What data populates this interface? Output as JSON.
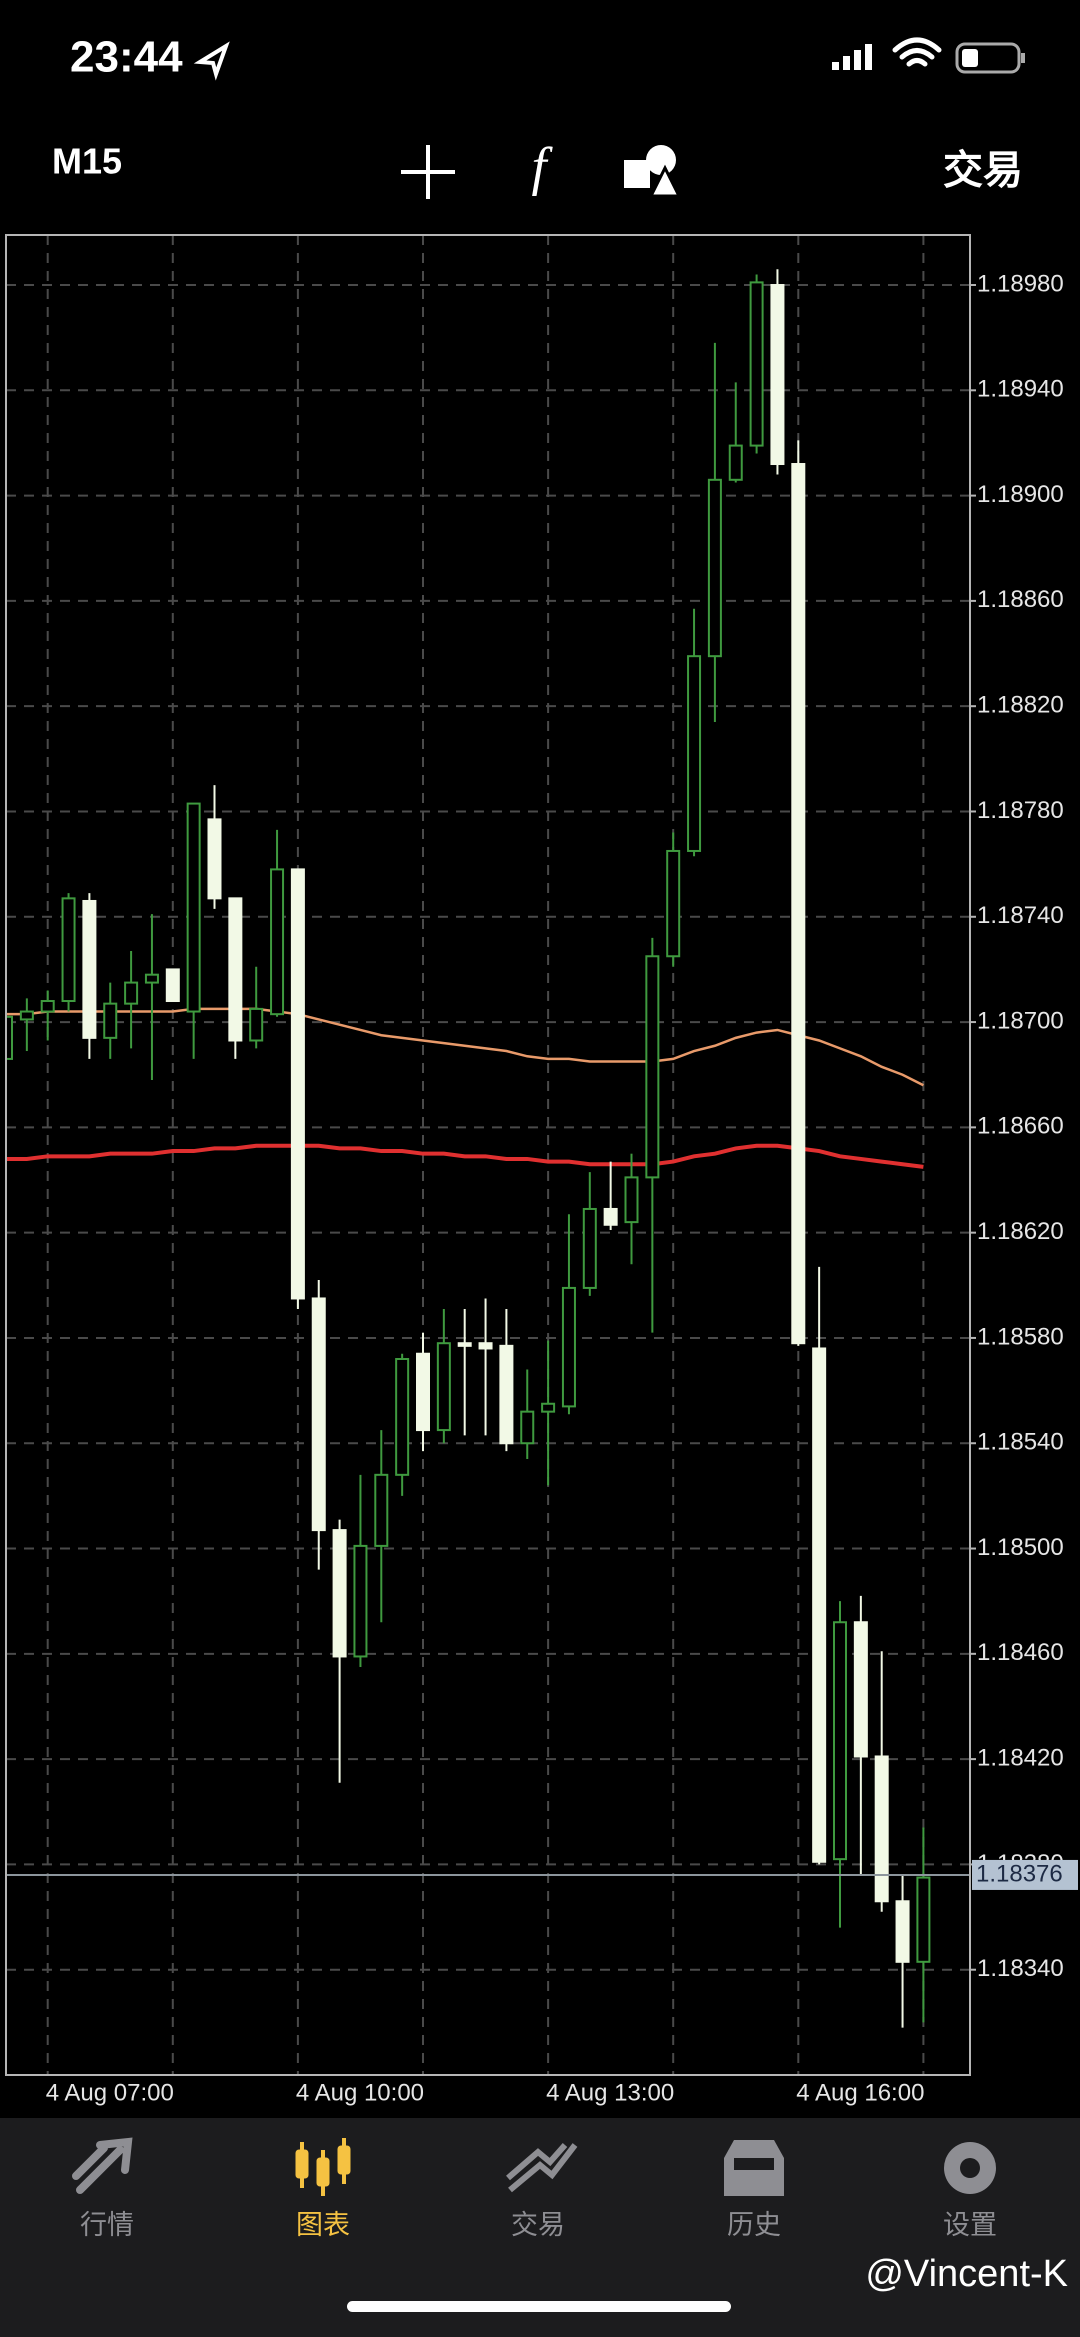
{
  "status_bar": {
    "time": "23:44"
  },
  "toolbar": {
    "timeframe": "M15",
    "trade": "交易"
  },
  "chart_data": {
    "type": "candlestick",
    "categories": [
      null,
      null,
      "4 Aug 07:00",
      null,
      null,
      null,
      null,
      null,
      null,
      null,
      null,
      null,
      null,
      null,
      "4 Aug 10:00",
      null,
      null,
      null,
      null,
      null,
      null,
      null,
      null,
      null,
      null,
      null,
      "4 Aug 13:00",
      null,
      null,
      null,
      null,
      null,
      null,
      null,
      null,
      null,
      null,
      null,
      "4 Aug 16:00",
      null,
      null,
      null,
      null,
      null,
      null
    ],
    "open": [
      1.18686,
      1.18701,
      1.18704,
      1.18708,
      1.18746,
      1.18694,
      1.18707,
      1.18715,
      1.1872,
      1.18704,
      1.18777,
      1.18747,
      1.18693,
      1.18703,
      1.18758,
      1.18595,
      1.18507,
      1.18459,
      1.18501,
      1.18528,
      1.18574,
      1.18545,
      1.18578,
      1.18578,
      1.18577,
      1.1854,
      1.18552,
      1.18554,
      1.18599,
      1.18629,
      1.18624,
      1.18641,
      1.18725,
      1.18765,
      1.18839,
      1.18906,
      1.18919,
      1.1898,
      1.18912,
      1.18576,
      1.18382,
      1.18472,
      1.18421,
      1.18366,
      1.18343
    ],
    "high": [
      1.18707,
      1.18709,
      1.18712,
      1.18749,
      1.18749,
      1.18715,
      1.18727,
      1.18741,
      1.1872,
      1.18783,
      1.1879,
      1.18747,
      1.18721,
      1.18773,
      1.18758,
      1.18602,
      1.18511,
      1.18528,
      1.18545,
      1.18574,
      1.18582,
      1.18591,
      1.18591,
      1.18595,
      1.18591,
      1.18568,
      1.18579,
      1.18627,
      1.18643,
      1.18647,
      1.1865,
      1.18732,
      1.18772,
      1.18857,
      1.18958,
      1.18943,
      1.18984,
      1.18986,
      1.18921,
      1.18607,
      1.1848,
      1.18482,
      1.18461,
      1.18376,
      1.18394
    ],
    "low": [
      1.18684,
      1.18689,
      1.18693,
      1.18704,
      1.18686,
      1.18686,
      1.1869,
      1.18678,
      1.18708,
      1.18686,
      1.18743,
      1.18686,
      1.1869,
      1.18702,
      1.18591,
      1.18492,
      1.18411,
      1.18455,
      1.18472,
      1.1852,
      1.18537,
      1.1854,
      1.18543,
      1.18543,
      1.18537,
      1.18534,
      1.18524,
      1.18551,
      1.18596,
      1.18621,
      1.18608,
      1.18582,
      1.18721,
      1.18763,
      1.18814,
      1.18905,
      1.18916,
      1.18908,
      1.18577,
      1.1838,
      1.18356,
      1.18376,
      1.18362,
      1.18318,
      1.1832
    ],
    "close": [
      1.18702,
      1.18704,
      1.18708,
      1.18747,
      1.18694,
      1.18707,
      1.18715,
      1.18718,
      1.18708,
      1.18783,
      1.18747,
      1.18693,
      1.18705,
      1.18758,
      1.18595,
      1.18507,
      1.18459,
      1.18501,
      1.18528,
      1.18572,
      1.18545,
      1.18578,
      1.18577,
      1.18576,
      1.1854,
      1.18552,
      1.18555,
      1.18599,
      1.18629,
      1.18623,
      1.18641,
      1.18725,
      1.18765,
      1.18839,
      1.18906,
      1.18919,
      1.18981,
      1.18912,
      1.18578,
      1.18381,
      1.18472,
      1.18421,
      1.18366,
      1.18343,
      1.18375
    ],
    "up_color": "#3f9a3f",
    "down_color": "#f2f9e6",
    "lines": [
      {
        "color": "#e89a6a",
        "values": [
          1.18703,
          1.18703,
          1.18704,
          1.18704,
          1.18704,
          1.18704,
          1.18704,
          1.18704,
          1.18704,
          1.18705,
          1.18705,
          1.18705,
          1.18705,
          1.18704,
          1.18703,
          1.18701,
          1.18699,
          1.18697,
          1.18695,
          1.18694,
          1.18693,
          1.18692,
          1.18691,
          1.1869,
          1.18689,
          1.18687,
          1.18686,
          1.18686,
          1.18685,
          1.18685,
          1.18685,
          1.18685,
          1.18686,
          1.18689,
          1.18691,
          1.18694,
          1.18696,
          1.18697,
          1.18695,
          1.18693,
          1.1869,
          1.18687,
          1.18683,
          1.1868,
          1.18676
        ]
      },
      {
        "color": "#e03030",
        "values": [
          1.18648,
          1.18648,
          1.18649,
          1.18649,
          1.18649,
          1.1865,
          1.1865,
          1.1865,
          1.18651,
          1.18651,
          1.18652,
          1.18652,
          1.18653,
          1.18653,
          1.18653,
          1.18653,
          1.18652,
          1.18652,
          1.18651,
          1.18651,
          1.1865,
          1.1865,
          1.18649,
          1.18649,
          1.18648,
          1.18648,
          1.18647,
          1.18647,
          1.18646,
          1.18646,
          1.18646,
          1.18646,
          1.18647,
          1.18649,
          1.1865,
          1.18652,
          1.18653,
          1.18653,
          1.18652,
          1.18651,
          1.18649,
          1.18648,
          1.18647,
          1.18646,
          1.18645
        ]
      }
    ],
    "ylim": [
      1.183,
      1.18999
    ],
    "yticks": [
      {
        "value": 1.1834,
        "label": "1.18340"
      },
      {
        "value": 1.1838,
        "label": "1.18380"
      },
      {
        "value": 1.1842,
        "label": "1.18420"
      },
      {
        "value": 1.1846,
        "label": "1.18460"
      },
      {
        "value": 1.185,
        "label": "1.18500"
      },
      {
        "value": 1.1854,
        "label": "1.18540"
      },
      {
        "value": 1.1858,
        "label": "1.18580"
      },
      {
        "value": 1.1862,
        "label": "1.18620"
      },
      {
        "value": 1.1866,
        "label": "1.18660"
      },
      {
        "value": 1.187,
        "label": "1.18700"
      },
      {
        "value": 1.1874,
        "label": "1.18740"
      },
      {
        "value": 1.1878,
        "label": "1.18780"
      },
      {
        "value": 1.1882,
        "label": "1.18820"
      },
      {
        "value": 1.1886,
        "label": "1.18860"
      },
      {
        "value": 1.189,
        "label": "1.18900"
      },
      {
        "value": 1.1894,
        "label": "1.18940"
      },
      {
        "value": 1.1898,
        "label": "1.18980"
      }
    ],
    "current_price": 1.18376,
    "grid": true
  },
  "tab_bar": {
    "tabs": [
      "行情",
      "图表",
      "交易",
      "历史",
      "设置"
    ],
    "active": 1
  },
  "watermark": "@Vincent-K"
}
